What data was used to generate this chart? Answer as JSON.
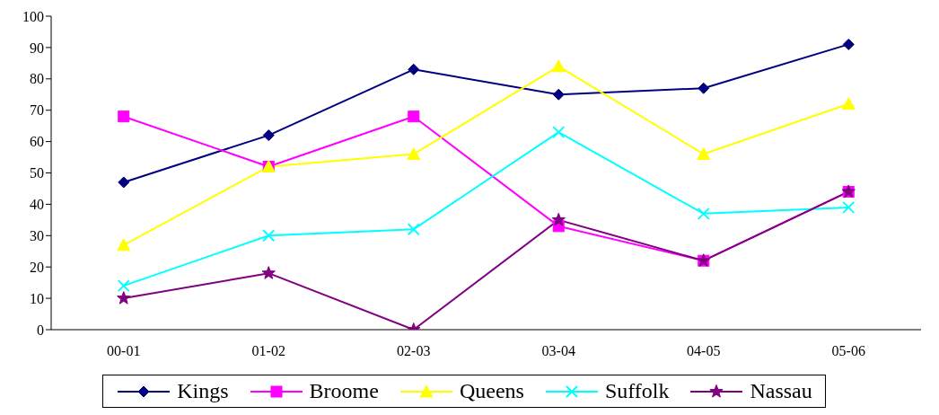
{
  "chart_data": {
    "type": "line",
    "categories": [
      "00-01",
      "01-02",
      "02-03",
      "03-04",
      "04-05",
      "05-06"
    ],
    "ylim": [
      0,
      100
    ],
    "yticks": [
      0,
      10,
      20,
      30,
      40,
      50,
      60,
      70,
      80,
      90,
      100
    ],
    "grid": false,
    "legend": "bottom",
    "line_style": "solid",
    "series": [
      {
        "name": "Kings",
        "color": "#000080",
        "marker": "diamond",
        "values": [
          47,
          62,
          83,
          75,
          77,
          91
        ]
      },
      {
        "name": "Broome",
        "color": "#ff00ff",
        "marker": "square",
        "values": [
          68,
          52,
          68,
          33,
          22,
          44
        ]
      },
      {
        "name": "Queens",
        "color": "#ffff00",
        "marker": "triangle",
        "values": [
          27,
          52,
          56,
          84,
          56,
          72
        ]
      },
      {
        "name": "Suffolk",
        "color": "#00ffff",
        "marker": "cross",
        "values": [
          14,
          30,
          32,
          63,
          37,
          39
        ]
      },
      {
        "name": "Nassau",
        "color": "#800080",
        "marker": "star",
        "values": [
          10,
          18,
          0,
          35,
          22,
          44
        ]
      }
    ]
  }
}
